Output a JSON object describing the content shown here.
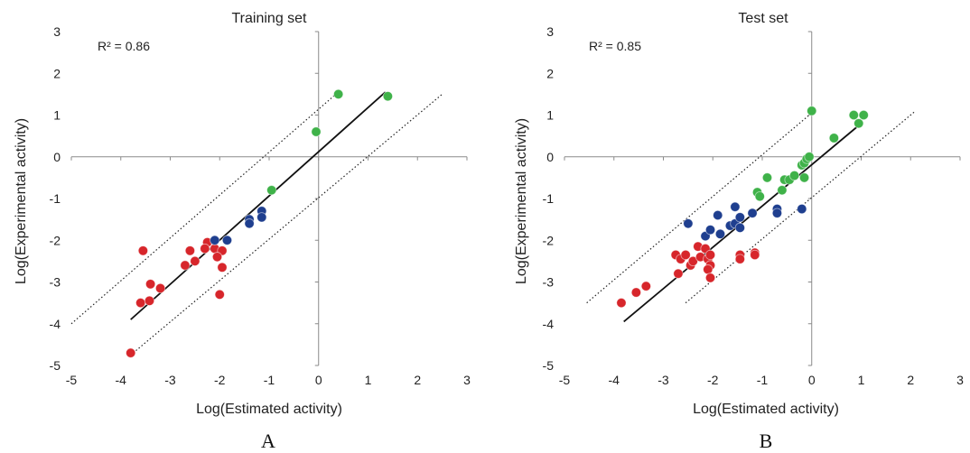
{
  "chart_data": [
    {
      "type": "scatter",
      "panel_label": "A",
      "title": "Training set",
      "xlabel": "Log(Estimated activity)",
      "ylabel": "Log(Experimental activity)",
      "xlim": [
        -5,
        3
      ],
      "ylim": [
        -5,
        3
      ],
      "xticks": [
        -5,
        -4,
        -3,
        -2,
        -1,
        0,
        1,
        2,
        3
      ],
      "yticks": [
        -5,
        -4,
        -3,
        -2,
        -1,
        0,
        1,
        2,
        3
      ],
      "annotation": "R² = 0.86",
      "legend": "none",
      "grid": false,
      "series": [
        {
          "color": "#d7262b",
          "points": [
            [
              -3.55,
              -2.25
            ],
            [
              -3.6,
              -3.5
            ],
            [
              -3.42,
              -3.45
            ],
            [
              -3.4,
              -3.05
            ],
            [
              -3.2,
              -3.15
            ],
            [
              -3.8,
              -4.7
            ],
            [
              -2.6,
              -2.25
            ],
            [
              -2.5,
              -2.5
            ],
            [
              -2.7,
              -2.6
            ],
            [
              -2.25,
              -2.05
            ],
            [
              -2.3,
              -2.2
            ],
            [
              -2.1,
              -2.2
            ],
            [
              -1.95,
              -2.25
            ],
            [
              -2.05,
              -2.4
            ],
            [
              -1.95,
              -2.65
            ],
            [
              -2.0,
              -3.3
            ]
          ]
        },
        {
          "color": "#1f3f8f",
          "points": [
            [
              -2.1,
              -2.0
            ],
            [
              -1.85,
              -2.0
            ],
            [
              -1.4,
              -1.5
            ],
            [
              -1.4,
              -1.6
            ],
            [
              -1.15,
              -1.3
            ],
            [
              -1.15,
              -1.45
            ]
          ]
        },
        {
          "color": "#3fb249",
          "points": [
            [
              -0.95,
              -0.8
            ],
            [
              -0.05,
              0.6
            ],
            [
              0.4,
              1.5
            ],
            [
              1.4,
              1.45
            ]
          ]
        }
      ],
      "fit_line": [
        [
          -3.8,
          -3.9
        ],
        [
          1.35,
          1.55
        ]
      ],
      "bounds": [
        [
          [
            -5.0,
            -4.0
          ],
          [
            0.35,
            1.5
          ]
        ],
        [
          [
            -3.75,
            -4.7
          ],
          [
            2.5,
            1.5
          ]
        ]
      ]
    },
    {
      "type": "scatter",
      "panel_label": "B",
      "title": "Test set",
      "xlabel": "Log(Estimated activity)",
      "ylabel": "Log(Experimental activity)",
      "xlim": [
        -5,
        3
      ],
      "ylim": [
        -5,
        3
      ],
      "xticks": [
        -5,
        -4,
        -3,
        -2,
        -1,
        0,
        1,
        2,
        3
      ],
      "yticks": [
        -5,
        -4,
        -3,
        -2,
        -1,
        0,
        1,
        2,
        3
      ],
      "annotation": "R² = 0.85",
      "legend": "none",
      "grid": false,
      "series": [
        {
          "color": "#d7262b",
          "points": [
            [
              -3.85,
              -3.5
            ],
            [
              -3.55,
              -3.25
            ],
            [
              -3.35,
              -3.1
            ],
            [
              -2.75,
              -2.35
            ],
            [
              -2.65,
              -2.45
            ],
            [
              -2.55,
              -2.35
            ],
            [
              -2.45,
              -2.6
            ],
            [
              -2.4,
              -2.5
            ],
            [
              -2.3,
              -2.15
            ],
            [
              -2.25,
              -2.4
            ],
            [
              -2.15,
              -2.2
            ],
            [
              -2.1,
              -2.45
            ],
            [
              -2.05,
              -2.35
            ],
            [
              -2.05,
              -2.6
            ],
            [
              -2.1,
              -2.7
            ],
            [
              -2.05,
              -2.9
            ],
            [
              -1.45,
              -2.35
            ],
            [
              -1.45,
              -2.45
            ],
            [
              -1.15,
              -2.3
            ],
            [
              -1.15,
              -2.35
            ],
            [
              -2.7,
              -2.8
            ]
          ]
        },
        {
          "color": "#1f3f8f",
          "points": [
            [
              -2.5,
              -1.6
            ],
            [
              -2.15,
              -1.9
            ],
            [
              -2.05,
              -1.75
            ],
            [
              -1.9,
              -1.4
            ],
            [
              -1.85,
              -1.85
            ],
            [
              -1.65,
              -1.65
            ],
            [
              -1.55,
              -1.2
            ],
            [
              -1.55,
              -1.6
            ],
            [
              -1.45,
              -1.45
            ],
            [
              -1.45,
              -1.7
            ],
            [
              -1.2,
              -1.35
            ],
            [
              -0.7,
              -1.25
            ],
            [
              -0.7,
              -1.35
            ],
            [
              -0.2,
              -1.25
            ]
          ]
        },
        {
          "color": "#3fb249",
          "points": [
            [
              -1.1,
              -0.85
            ],
            [
              -1.05,
              -0.95
            ],
            [
              -0.9,
              -0.5
            ],
            [
              -0.6,
              -0.8
            ],
            [
              -0.55,
              -0.55
            ],
            [
              -0.45,
              -0.55
            ],
            [
              -0.35,
              -0.45
            ],
            [
              -0.2,
              -0.2
            ],
            [
              -0.15,
              -0.15
            ],
            [
              -0.1,
              -0.05
            ],
            [
              -0.05,
              0.0
            ],
            [
              -0.15,
              -0.5
            ],
            [
              0.0,
              1.1
            ],
            [
              0.45,
              0.45
            ],
            [
              0.85,
              1.0
            ],
            [
              0.95,
              0.8
            ],
            [
              1.05,
              1.0
            ]
          ]
        }
      ],
      "fit_line": [
        [
          -3.8,
          -3.95
        ],
        [
          1.0,
          0.8
        ]
      ],
      "bounds": [
        [
          [
            -4.55,
            -3.5
          ],
          [
            0.0,
            1.05
          ]
        ],
        [
          [
            -2.55,
            -3.5
          ],
          [
            2.1,
            1.1
          ]
        ]
      ]
    }
  ]
}
